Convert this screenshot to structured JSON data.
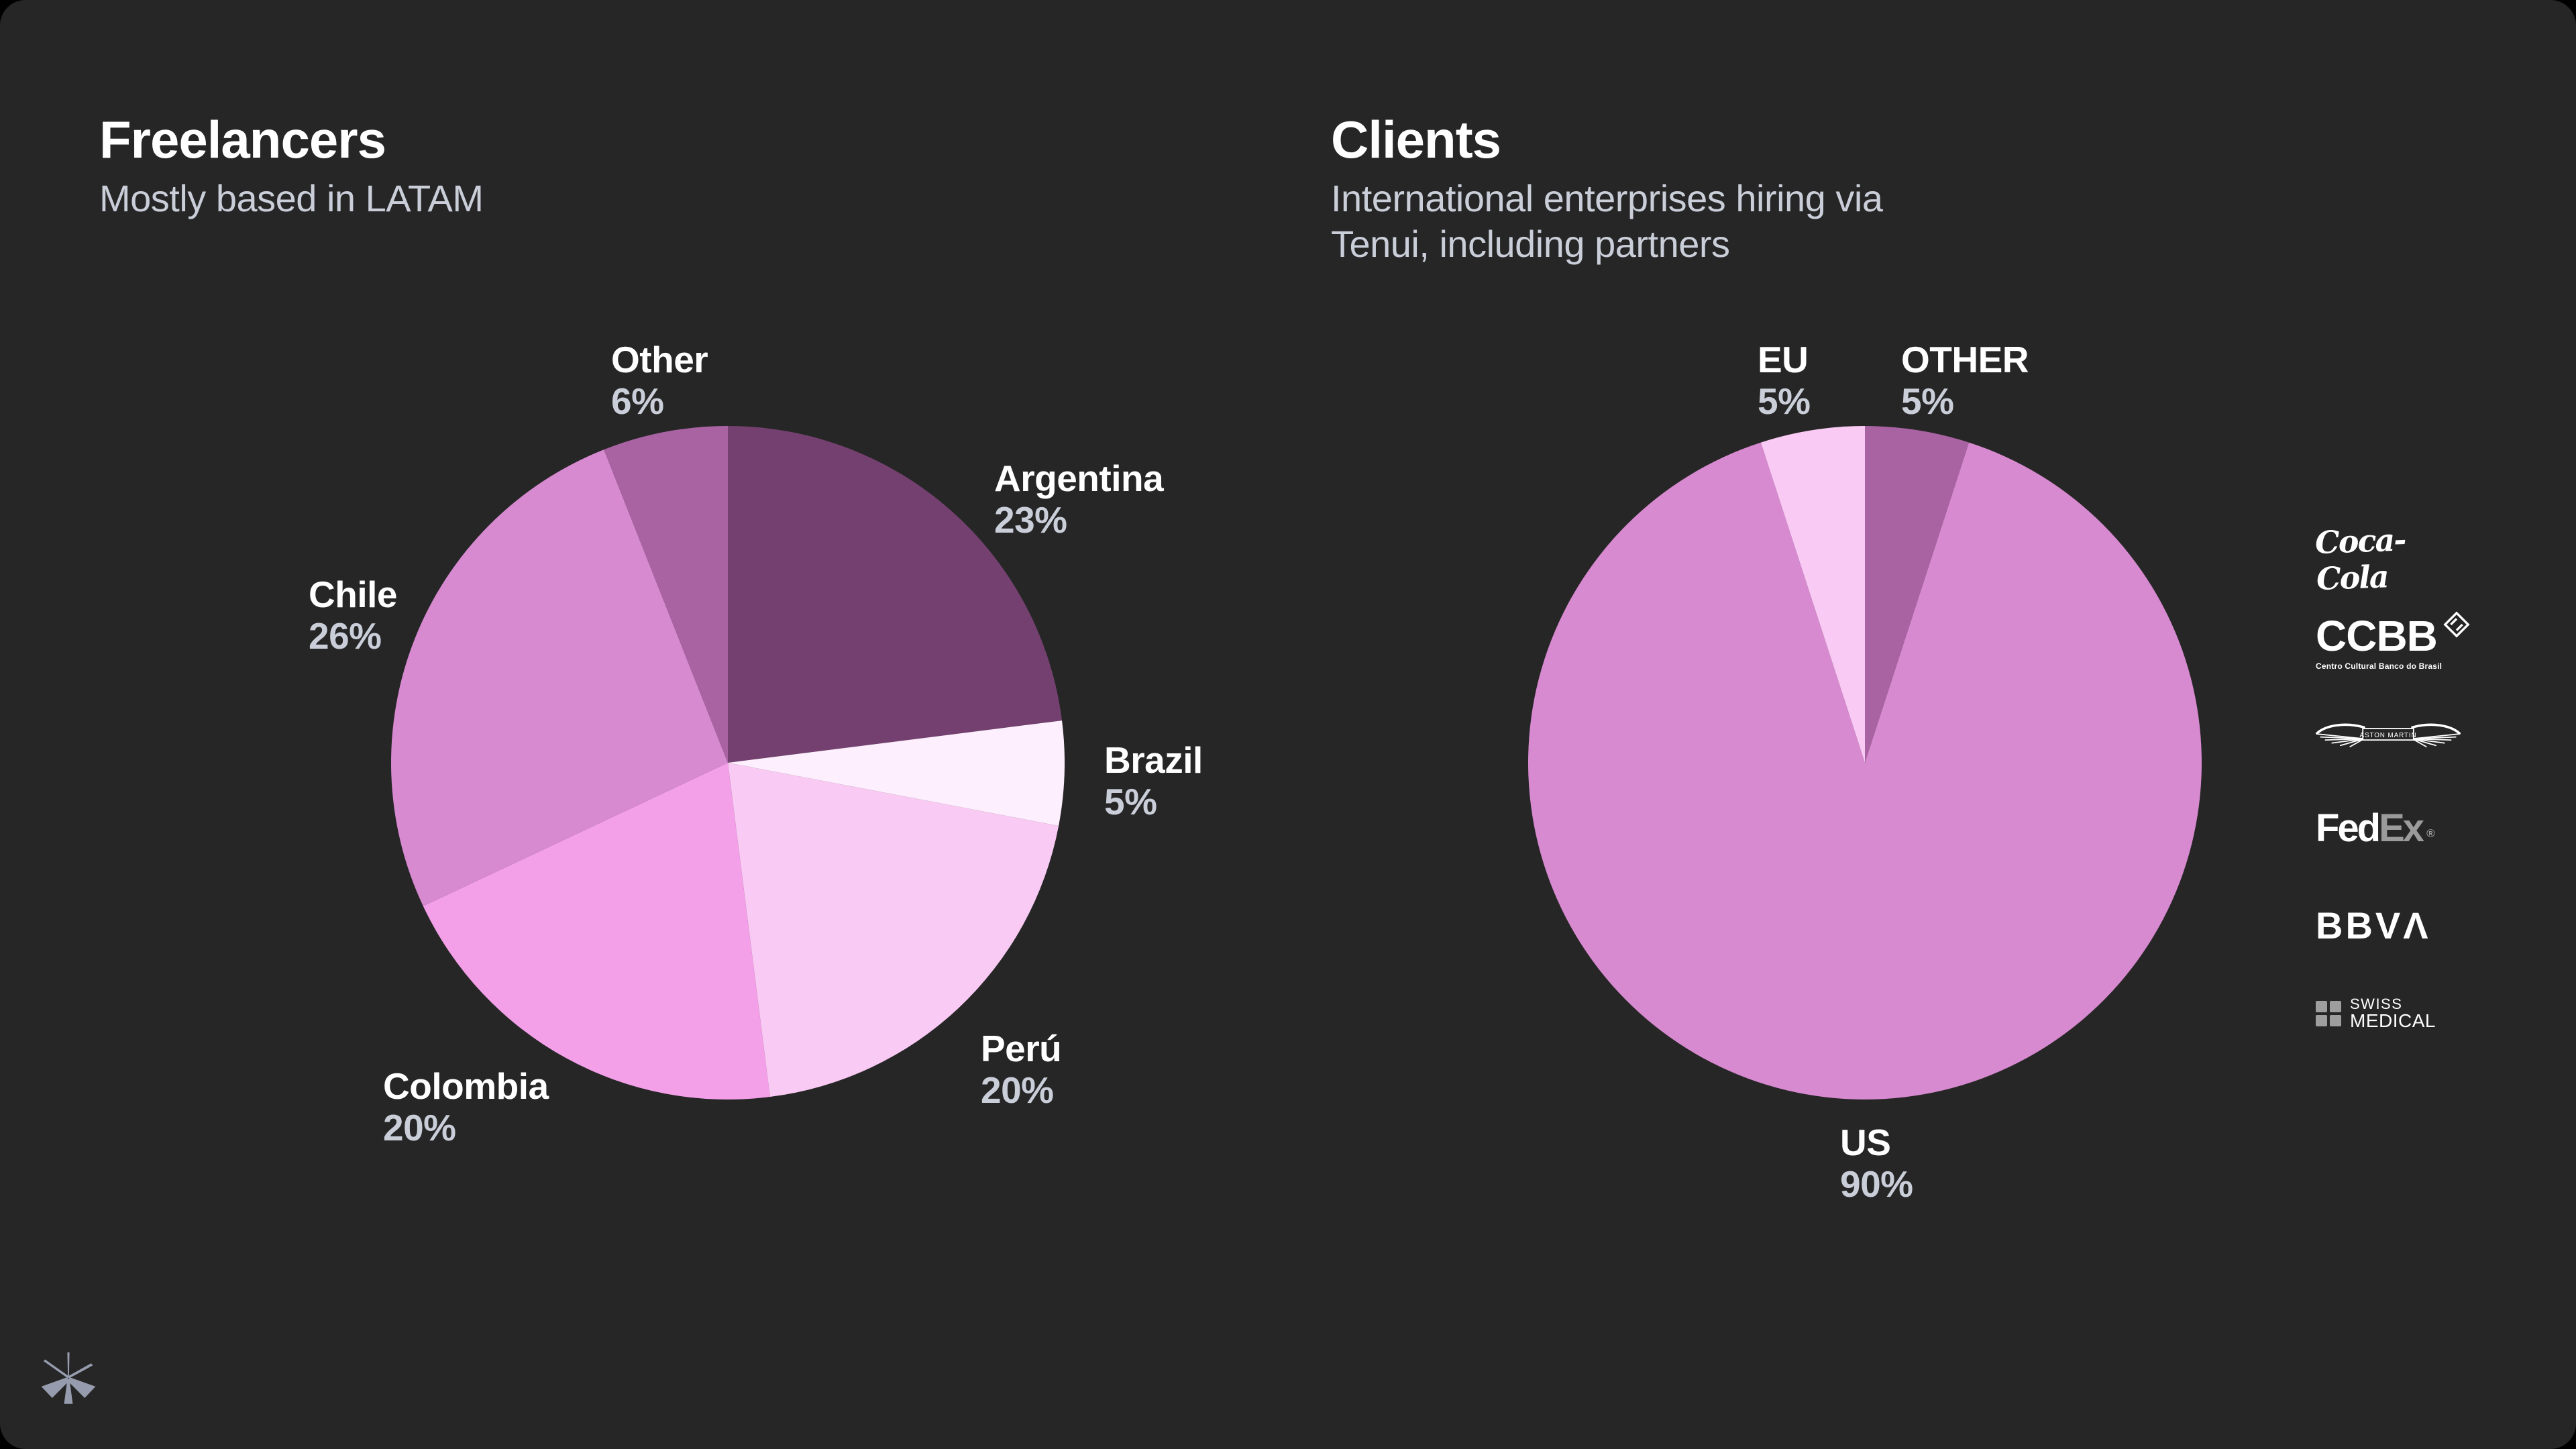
{
  "slide": {
    "page_bg": "#000000",
    "panel_bg": "#262626",
    "title_color": "#ffffff",
    "muted_text_color": "#c9ced9",
    "brand_mark_color": "#969cae",
    "brand_mark": "asterisk"
  },
  "sections": {
    "freelancers": {
      "title": "Freelancers",
      "subtitle_lines": [
        "Mostly based in LATAM"
      ]
    },
    "clients": {
      "title": "Clients",
      "subtitle_lines": [
        "International enterprises hiring via",
        "Tenui, including partners"
      ]
    }
  },
  "chart_data": [
    {
      "type": "pie",
      "title": "Freelancers",
      "subtitle": "Mostly based in LATAM",
      "categories": [
        "Argentina",
        "Brazil",
        "Perú",
        "Colombia",
        "Chile",
        "Other"
      ],
      "values": [
        23,
        5,
        20,
        20,
        26,
        6
      ],
      "value_labels": [
        "23%",
        "5%",
        "20%",
        "20%",
        "26%",
        "6%"
      ],
      "colors": [
        "#73406F",
        "#FDEFFD",
        "#F9CAF3",
        "#F3A0E9",
        "#D78AD0",
        "#A963A3"
      ],
      "start_angle_deg": 0,
      "direction": "clockwise",
      "label_position": "outside",
      "legend": false,
      "background": "#262626"
    },
    {
      "type": "pie",
      "title": "Clients",
      "subtitle": "International enterprises hiring via Tenui, including partners",
      "categories": [
        "OTHER",
        "US",
        "EU"
      ],
      "values": [
        5,
        90,
        5
      ],
      "value_labels": [
        "5%",
        "90%",
        "5%"
      ],
      "colors": [
        "#A963A3",
        "#D78AD0",
        "#F9CAF3"
      ],
      "start_angle_deg": 0,
      "direction": "clockwise",
      "label_position": "outside",
      "legend": false,
      "background": "#262626"
    }
  ],
  "client_logos": {
    "coca_cola": {
      "text": "Coca-Cola"
    },
    "ccbb": {
      "text": "CCBB",
      "tagline": "Centro Cultural Banco do Brasil"
    },
    "aston_martin": {
      "text": "ASTON MARTIN"
    },
    "fedex": {
      "text_primary": "Fed",
      "text_secondary": "Ex",
      "registered_mark": "®"
    },
    "bbva": {
      "text": "BBVΛ"
    },
    "swiss_medical": {
      "line1": "SWISS",
      "line2": "MEDICAL"
    }
  }
}
